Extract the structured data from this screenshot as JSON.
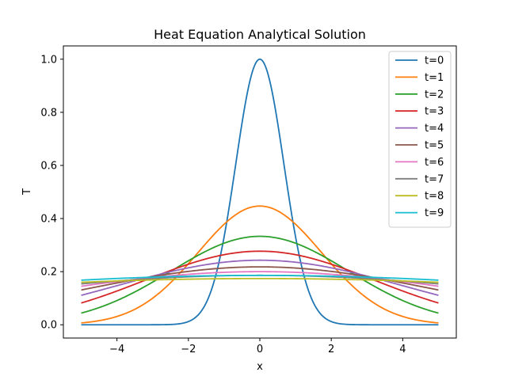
{
  "chart_data": {
    "type": "line",
    "title": "Heat Equation Analytical Solution",
    "xlabel": "x",
    "ylabel": "T",
    "xlim": [
      -5.5,
      5.5
    ],
    "ylim": [
      -0.05,
      1.05
    ],
    "x_ticks": [
      -4,
      -2,
      0,
      2,
      4
    ],
    "x_tick_labels": [
      "−4",
      "−2",
      "0",
      "2",
      "4"
    ],
    "y_ticks": [
      0.0,
      0.2,
      0.4,
      0.6,
      0.8,
      1.0
    ],
    "y_tick_labels": [
      "0.0",
      "0.2",
      "0.4",
      "0.6",
      "0.8",
      "1.0"
    ],
    "grid": false,
    "legend_position": "top-right",
    "x_range": [
      -5,
      5
    ],
    "series": [
      {
        "name": "t=0",
        "color": "#1f77b4",
        "peak": 1.0,
        "value_at_x5": 0.0
      },
      {
        "name": "t=1",
        "color": "#ff7f0e",
        "peak": 0.447,
        "value_at_x5": 0.007
      },
      {
        "name": "t=2",
        "color": "#2ca02c",
        "peak": 0.333,
        "value_at_x5": 0.044
      },
      {
        "name": "t=3",
        "color": "#d62728",
        "peak": 0.277,
        "value_at_x5": 0.082
      },
      {
        "name": "t=4",
        "color": "#9467bd",
        "peak": 0.243,
        "value_at_x5": 0.111
      },
      {
        "name": "t=5",
        "color": "#8c564b",
        "peak": 0.218,
        "value_at_x5": 0.131
      },
      {
        "name": "t=6",
        "color": "#e377c2",
        "peak": 0.2,
        "value_at_x5": 0.145
      },
      {
        "name": "t=7",
        "color": "#7f7f7f",
        "peak": 0.186,
        "value_at_x5": 0.154
      },
      {
        "name": "t=8",
        "color": "#bcbd22",
        "peak": 0.174,
        "value_at_x5": 0.16
      },
      {
        "name": "t=9",
        "color": "#17becf",
        "peak": 0.186,
        "value_at_x5": 0.168
      }
    ]
  }
}
